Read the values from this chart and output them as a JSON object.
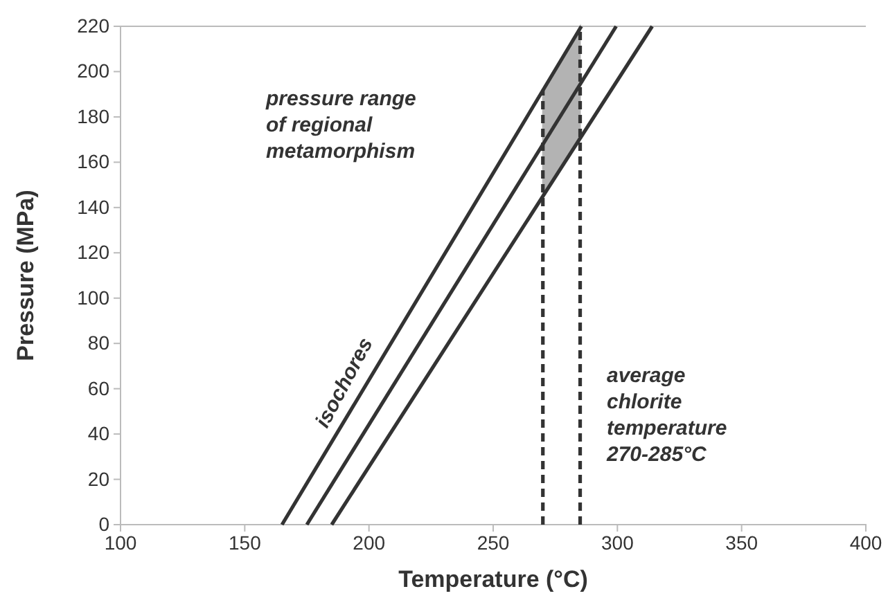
{
  "chart_data": {
    "type": "line",
    "xlabel": "Temperature (°C)",
    "ylabel": "Pressure (MPa)",
    "xlim": [
      100,
      400
    ],
    "xticks": [
      100,
      150,
      200,
      250,
      300,
      350,
      400
    ],
    "ylim": [
      0,
      220
    ],
    "yticks": [
      0,
      20,
      40,
      60,
      80,
      100,
      120,
      140,
      160,
      180,
      200,
      220
    ],
    "grid": false,
    "marker": "none",
    "series": [
      {
        "color": "#b3b3b3",
        "x": [
          270,
          285
        ],
        "values": [
          null,
          null
        ],
        "lower": [
          146,
          172
        ],
        "upper": [
          192,
          220
        ]
      },
      {
        "color": "#333333",
        "x": [
          165,
          285.5
        ],
        "values": [
          0,
          220
        ],
        "line_style": "solid"
      },
      {
        "color": "#333333",
        "x": [
          175,
          299.5
        ],
        "values": [
          0,
          220
        ],
        "line_style": "solid"
      },
      {
        "color": "#333333",
        "x": [
          185,
          314
        ],
        "values": [
          0,
          220
        ],
        "line_style": "solid"
      },
      {
        "color": "#333333",
        "x": [
          270,
          270
        ],
        "values": [
          0,
          192
        ],
        "line_style": "dashed"
      },
      {
        "color": "#333333",
        "x": [
          285,
          285
        ],
        "values": [
          0,
          220
        ],
        "line_style": "dashed"
      }
    ],
    "annotations": [
      "pressure range\nof regional\nmetamorphism",
      "isochores",
      "average\nchlorite\ntemperature\n270-285°C"
    ]
  }
}
